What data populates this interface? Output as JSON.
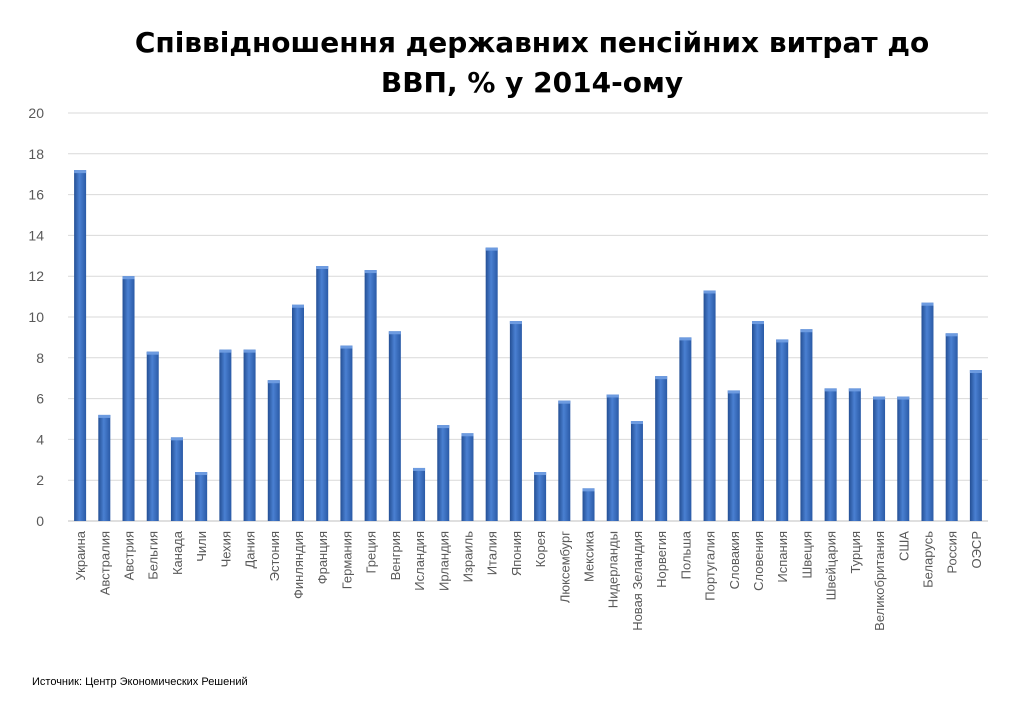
{
  "title_line1": "Співвідношення державних пенсійних витрат до",
  "title_line2": "ВВП, % у 2014-ому",
  "source": "Источник: Центр Экономических Решений",
  "colors": {
    "bar": "#3a6fc0",
    "bar_dark": "#244f94",
    "bar_light": "#6d9be0",
    "grid": "#d9d9d9",
    "text": "#595959"
  },
  "chart_data": {
    "type": "bar",
    "title": "Співвідношення державних пенсійних витрат до ВВП, % у 2014-ому",
    "categories": [
      "Украина",
      "Австралия",
      "Австрия",
      "Бельгия",
      "Канада",
      "Чили",
      "Чехия",
      "Дания",
      "Эстония",
      "Финляндия",
      "Франция",
      "Германия",
      "Греция",
      "Венгрия",
      "Исландия",
      "Ирландия",
      "Израиль",
      "Италия",
      "Япония",
      "Корея",
      "Люксембург",
      "Мексика",
      "Нидерланды",
      "Новая Зеландия",
      "Норвегия",
      "Польша",
      "Португалия",
      "Словакия",
      "Словения",
      "Испания",
      "Швеция",
      "Швейцария",
      "Турция",
      "Великобритания",
      "США",
      "Беларусь",
      "Россия",
      "ОЭСР"
    ],
    "values": [
      17.2,
      5.2,
      12.0,
      8.3,
      4.1,
      2.4,
      8.4,
      8.4,
      6.9,
      10.6,
      12.5,
      8.6,
      12.3,
      9.3,
      2.6,
      4.7,
      4.3,
      13.4,
      9.8,
      2.4,
      5.9,
      1.6,
      6.2,
      4.9,
      7.1,
      9.0,
      11.3,
      6.4,
      9.8,
      8.9,
      9.4,
      6.5,
      6.5,
      6.1,
      6.1,
      10.7,
      9.2,
      7.4
    ],
    "ylim": [
      0,
      20
    ],
    "yticks": [
      "0",
      "2",
      "4",
      "6",
      "8",
      "10",
      "12",
      "14",
      "16",
      "18",
      "20"
    ],
    "grid": true
  }
}
